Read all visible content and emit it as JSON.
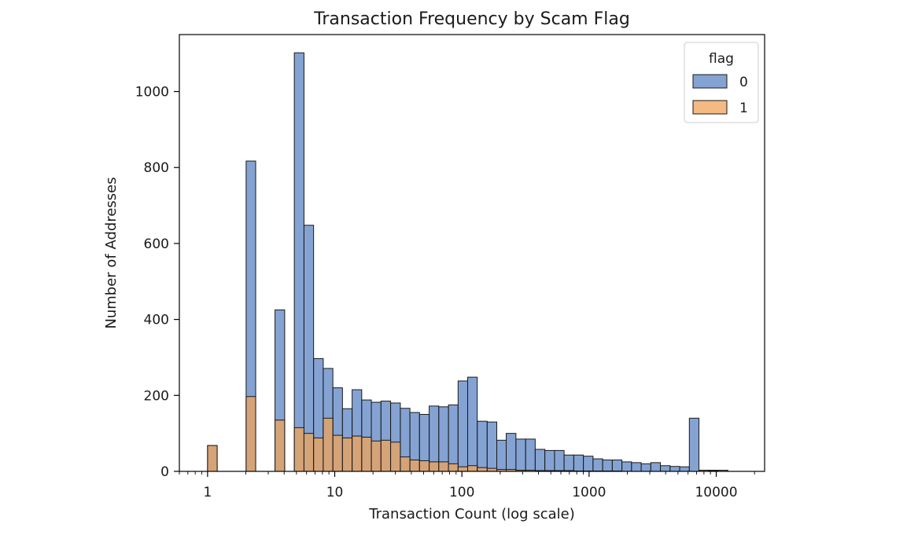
{
  "chart_data": {
    "type": "bar",
    "title": "Transaction Frequency by Scam Flag",
    "xlabel": "Transaction Count (log scale)",
    "ylabel": "Number of Addresses",
    "x_scale": "log",
    "xlim": [
      0.6,
      24000
    ],
    "ylim": [
      0,
      1150
    ],
    "x_ticks": [
      1,
      10,
      100,
      1000,
      10000
    ],
    "x_tick_labels": [
      "1",
      "10",
      "100",
      "1000",
      "10000"
    ],
    "y_ticks": [
      0,
      200,
      400,
      600,
      800,
      1000
    ],
    "y_tick_labels": [
      "0",
      "200",
      "400",
      "600",
      "800",
      "1000"
    ],
    "grid": false,
    "legend": {
      "title": "flag",
      "placement": "top-right"
    },
    "bin_edges": [
      1.0,
      1.19,
      1.42,
      1.69,
      2.01,
      2.39,
      2.85,
      3.39,
      4.04,
      4.81,
      5.73,
      6.82,
      8.12,
      9.67,
      11.5,
      13.7,
      16.3,
      19.4,
      23.1,
      27.5,
      32.8,
      39.0,
      46.4,
      55.3,
      65.8,
      78.4,
      93.3,
      111,
      132,
      158,
      188,
      223,
      266,
      317,
      377,
      449,
      535,
      636,
      758,
      902,
      1074,
      1279,
      1522,
      1812,
      2157,
      2568,
      3058,
      3640,
      4333,
      5159,
      6142,
      7312,
      8705,
      10364,
      12338,
      14689,
      17488
    ],
    "series": [
      {
        "name": "0",
        "color": "#5b84c4",
        "values": [
          68,
          0,
          0,
          0,
          817,
          0,
          0,
          425,
          0,
          1102,
          648,
          297,
          271,
          220,
          165,
          215,
          188,
          182,
          185,
          180,
          166,
          155,
          150,
          172,
          170,
          175,
          238,
          248,
          132,
          130,
          82,
          100,
          85,
          85,
          58,
          55,
          55,
          43,
          43,
          40,
          33,
          30,
          30,
          25,
          23,
          20,
          23,
          15,
          13,
          12,
          140,
          3,
          3,
          3,
          0,
          0
        ]
      },
      {
        "name": "1",
        "color": "#f0a35a",
        "values": [
          68,
          0,
          0,
          0,
          197,
          0,
          0,
          135,
          0,
          115,
          100,
          88,
          140,
          95,
          88,
          93,
          90,
          80,
          82,
          77,
          38,
          30,
          28,
          25,
          25,
          20,
          12,
          15,
          10,
          8,
          5,
          5,
          3,
          3,
          2,
          2,
          2,
          2,
          1,
          1,
          1,
          1,
          1,
          0,
          0,
          0,
          0,
          0,
          0,
          0,
          0,
          3,
          2,
          0,
          0,
          0
        ]
      }
    ]
  }
}
